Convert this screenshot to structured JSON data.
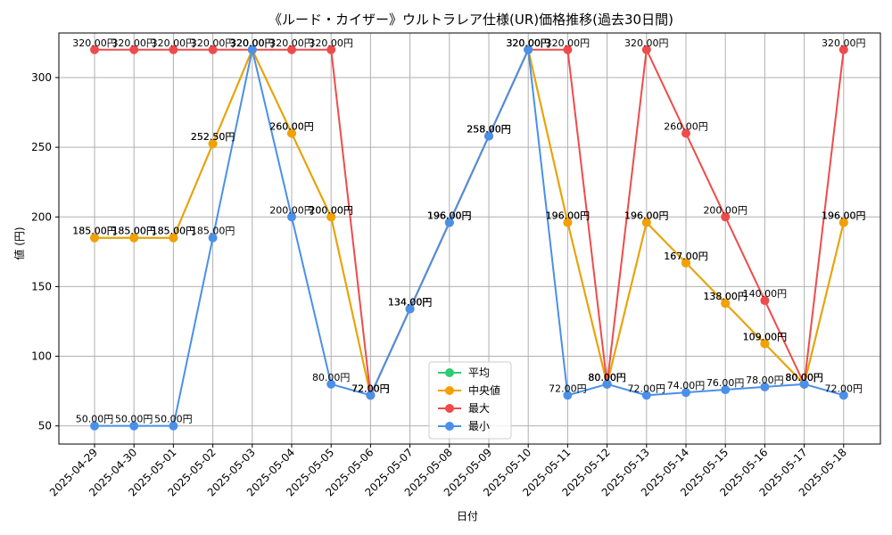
{
  "chart_data": {
    "type": "line",
    "title": "《ルード・カイザー》ウルトラレア仕様(UR)価格推移(過去30日間)",
    "xlabel": "日付",
    "ylabel": "値 (円)",
    "ylim": [
      37,
      332
    ],
    "yticks": [
      50,
      100,
      150,
      200,
      250,
      300
    ],
    "grid": true,
    "legend_position": "lower-center",
    "value_suffix": "円",
    "categories": [
      "2025-04-29",
      "2025-04-30",
      "2025-05-01",
      "2025-05-02",
      "2025-05-03",
      "2025-05-04",
      "2025-05-05",
      "2025-05-06",
      "2025-05-07",
      "2025-05-08",
      "2025-05-09",
      "2025-05-10",
      "2025-05-11",
      "2025-05-12",
      "2025-05-13",
      "2025-05-14",
      "2025-05-15",
      "2025-05-16",
      "2025-05-17",
      "2025-05-18"
    ],
    "series": [
      {
        "name": "平均",
        "color": "#2ecc71",
        "values": [
          185,
          185,
          185,
          252.5,
          320,
          260,
          200,
          72,
          134,
          196,
          258,
          320,
          196,
          80,
          196,
          167,
          138,
          109,
          80,
          196
        ]
      },
      {
        "name": "中央値",
        "color": "#f5a000",
        "values": [
          185,
          185,
          185,
          252.5,
          320,
          260,
          200,
          72,
          134,
          196,
          258,
          320,
          196,
          80,
          196,
          167,
          138,
          109,
          80,
          196
        ]
      },
      {
        "name": "最大",
        "color": "#ef4b4b",
        "values": [
          320,
          320,
          320,
          320,
          320,
          320,
          320,
          72,
          134,
          196,
          258,
          320,
          320,
          80,
          320,
          260,
          200,
          140,
          80,
          320
        ]
      },
      {
        "name": "最小",
        "color": "#4a90e8",
        "values": [
          50,
          50,
          50,
          185,
          320,
          200,
          80,
          72,
          134,
          196,
          258,
          320,
          72,
          80,
          72,
          74,
          76,
          78,
          80,
          72
        ]
      }
    ]
  }
}
